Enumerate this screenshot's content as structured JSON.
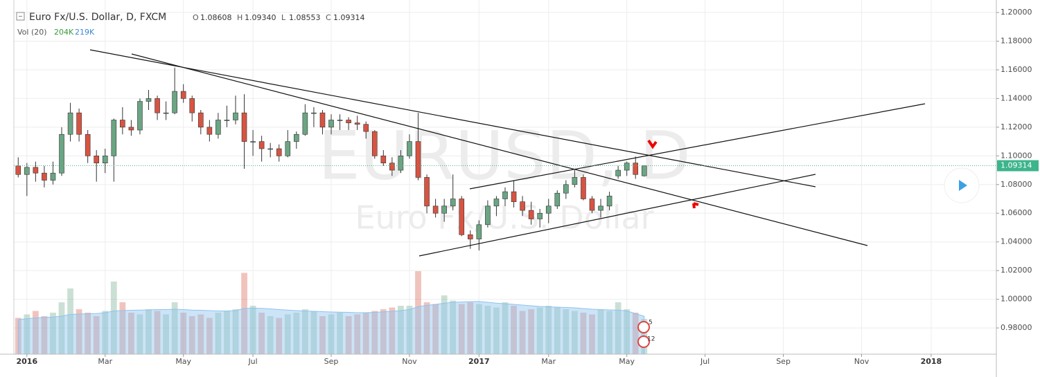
{
  "header": {
    "symbol": "Euro Fx/U.S. Dollar, D, FXCM",
    "ohlc": [
      {
        "key": "O",
        "value": "1.08608"
      },
      {
        "key": "H",
        "value": "1.09340"
      },
      {
        "key": "L",
        "value": "1.08553"
      },
      {
        "key": "C",
        "value": "1.09314"
      }
    ],
    "volume_indicator": "Vol (20)",
    "volume_values": [
      "204K",
      "219K"
    ]
  },
  "watermark": {
    "ticker": "EURUSD, D",
    "description": "Euro Fx/U.S. Dollar"
  },
  "events": [
    "5",
    "12"
  ],
  "chart_data": {
    "type": "candlestick",
    "grid": true,
    "up_color": "#6ba583",
    "down_color": "#d75442",
    "volume_ma_color": "#8fc3ee",
    "last_price_color": "#3cb48c",
    "ylim": [
      0.9617,
      1.2087
    ],
    "yticks": [
      {
        "value": 0.98,
        "label": "0.98000"
      },
      {
        "value": 1.0,
        "label": "1.00000"
      },
      {
        "value": 1.02,
        "label": "1.02000"
      },
      {
        "value": 1.04,
        "label": "1.04000"
      },
      {
        "value": 1.06,
        "label": "1.06000"
      },
      {
        "value": 1.08,
        "label": "1.08000"
      },
      {
        "value": 1.1,
        "label": "1.10000"
      },
      {
        "value": 1.12,
        "label": "1.12000"
      },
      {
        "value": 1.14,
        "label": "1.14000"
      },
      {
        "value": 1.16,
        "label": "1.16000"
      },
      {
        "value": 1.18,
        "label": "1.18000"
      },
      {
        "value": 1.2,
        "label": "1.20000"
      }
    ],
    "last_price": 1.09314,
    "categories": [
      null,
      "2016",
      null,
      null,
      null,
      null,
      null,
      null,
      null,
      null,
      "Mar",
      null,
      null,
      null,
      null,
      null,
      null,
      null,
      null,
      "May",
      null,
      null,
      null,
      null,
      null,
      null,
      null,
      "Jul",
      null,
      null,
      null,
      null,
      null,
      null,
      null,
      null,
      "Sep",
      null,
      null,
      null,
      null,
      null,
      null,
      null,
      null,
      "Nov",
      null,
      null,
      null,
      null,
      null,
      null,
      null,
      "2017",
      null,
      null,
      null,
      null,
      null,
      null,
      null,
      "Mar",
      null,
      null,
      null,
      null,
      null,
      null,
      null,
      null,
      "May",
      null,
      null,
      null,
      null,
      null,
      null,
      null,
      null,
      "Jul",
      null,
      null,
      null,
      null,
      null,
      null,
      null,
      null,
      "Sep",
      null,
      null,
      null,
      null,
      null,
      null,
      null,
      null,
      "Nov",
      null,
      null,
      null,
      null,
      null,
      null,
      null,
      "2018",
      null,
      null,
      null,
      null,
      null,
      null,
      null
    ],
    "open": [
      1.093,
      1.087,
      1.092,
      1.088,
      1.083,
      1.088,
      1.115,
      1.13,
      1.115,
      1.1,
      1.095,
      1.1,
      1.125,
      1.12,
      1.118,
      1.138,
      1.14,
      1.13,
      1.13,
      1.145,
      1.14,
      1.13,
      1.12,
      1.115,
      1.125,
      1.125,
      1.13,
      1.11,
      1.11,
      1.105,
      1.105,
      1.1,
      1.11,
      1.115,
      1.13,
      1.13,
      1.12,
      1.125,
      1.125,
      1.123,
      1.122,
      1.117,
      1.1,
      1.095,
      1.09,
      1.1,
      1.11,
      1.085,
      1.065,
      1.06,
      1.065,
      1.07,
      1.045,
      1.042,
      1.052,
      1.065,
      1.07,
      1.075,
      1.068,
      1.062,
      1.056,
      1.06,
      1.065,
      1.074,
      1.08,
      1.085,
      1.07,
      1.062,
      1.065,
      1.086,
      1.09,
      1.095,
      1.08608,
      null,
      null,
      null,
      null,
      null,
      null,
      null,
      null,
      null,
      null,
      null,
      null,
      null,
      null,
      null,
      null,
      null,
      null,
      null,
      null,
      null,
      null,
      null,
      null,
      null,
      null,
      null,
      null,
      null,
      null,
      null,
      null,
      null,
      null,
      null,
      null,
      null,
      null,
      null,
      null
    ],
    "high": [
      1.099,
      1.095,
      1.096,
      1.093,
      1.096,
      1.12,
      1.137,
      1.133,
      1.118,
      1.104,
      1.105,
      1.126,
      1.134,
      1.125,
      1.14,
      1.146,
      1.142,
      1.138,
      1.1616,
      1.15,
      1.142,
      1.132,
      1.125,
      1.13,
      1.135,
      1.142,
      1.143,
      1.118,
      1.114,
      1.109,
      1.108,
      1.118,
      1.117,
      1.136,
      1.134,
      1.132,
      1.129,
      1.129,
      1.127,
      1.128,
      1.124,
      1.118,
      1.104,
      1.099,
      1.104,
      1.115,
      1.13,
      1.087,
      1.07,
      1.07,
      1.087,
      1.072,
      1.048,
      1.055,
      1.069,
      1.072,
      1.078,
      1.083,
      1.072,
      1.068,
      1.063,
      1.07,
      1.076,
      1.083,
      1.09,
      1.087,
      1.072,
      1.07,
      1.075,
      1.093,
      1.096,
      1.0995,
      1.0934,
      null,
      null,
      null,
      null,
      null,
      null,
      null,
      null,
      null,
      null,
      null,
      null,
      null,
      null,
      null,
      null,
      null,
      null,
      null,
      null,
      null,
      null,
      null,
      null,
      null,
      null,
      null,
      null,
      null,
      null,
      null,
      null,
      null,
      null,
      null,
      null,
      null,
      null,
      null,
      null
    ],
    "low": [
      1.085,
      1.072,
      1.082,
      1.078,
      1.08,
      1.086,
      1.11,
      1.11,
      1.095,
      1.082,
      1.088,
      1.082,
      1.115,
      1.114,
      1.115,
      1.132,
      1.125,
      1.125,
      1.129,
      1.137,
      1.124,
      1.115,
      1.11,
      1.112,
      1.12,
      1.122,
      1.091,
      1.1,
      1.096,
      1.099,
      1.096,
      1.099,
      1.105,
      1.114,
      1.12,
      1.115,
      1.115,
      1.118,
      1.118,
      1.118,
      1.112,
      1.098,
      1.093,
      1.086,
      1.088,
      1.098,
      1.083,
      1.06,
      1.057,
      1.054,
      1.062,
      1.044,
      1.0352,
      1.034,
      1.05,
      1.058,
      1.065,
      1.064,
      1.058,
      1.052,
      1.05,
      1.053,
      1.063,
      1.07,
      1.078,
      1.069,
      1.06,
      1.057,
      1.062,
      1.084,
      1.086,
      1.084,
      1.08553,
      null,
      null,
      null,
      null,
      null,
      null,
      null,
      null,
      null,
      null,
      null,
      null,
      null,
      null,
      null,
      null,
      null,
      null,
      null,
      null,
      null,
      null,
      null,
      null,
      null,
      null,
      null,
      null,
      null,
      null,
      null,
      null,
      null,
      null,
      null,
      null,
      null,
      null,
      null,
      null
    ],
    "close": [
      1.087,
      1.092,
      1.088,
      1.083,
      1.088,
      1.115,
      1.13,
      1.115,
      1.1,
      1.095,
      1.1,
      1.125,
      1.12,
      1.118,
      1.138,
      1.14,
      1.13,
      1.13,
      1.145,
      1.14,
      1.13,
      1.12,
      1.115,
      1.125,
      1.125,
      1.13,
      1.11,
      1.11,
      1.105,
      1.105,
      1.1,
      1.11,
      1.115,
      1.13,
      1.13,
      1.12,
      1.125,
      1.125,
      1.123,
      1.122,
      1.117,
      1.1,
      1.095,
      1.09,
      1.1,
      1.11,
      1.085,
      1.065,
      1.06,
      1.065,
      1.07,
      1.045,
      1.042,
      1.052,
      1.065,
      1.07,
      1.075,
      1.068,
      1.062,
      1.056,
      1.06,
      1.065,
      1.074,
      1.08,
      1.085,
      1.07,
      1.062,
      1.065,
      1.072,
      1.09,
      1.095,
      1.087,
      1.09314,
      null,
      null,
      null,
      null,
      null,
      null,
      null,
      null,
      null,
      null,
      null,
      null,
      null,
      null,
      null,
      null,
      null,
      null,
      null,
      null,
      null,
      null,
      null,
      null,
      null,
      null,
      null,
      null,
      null,
      null,
      null,
      null,
      null,
      null,
      null,
      null,
      null,
      null,
      null,
      null
    ],
    "volume": [
      210,
      230,
      250,
      220,
      240,
      300,
      380,
      260,
      240,
      220,
      250,
      420,
      300,
      240,
      230,
      260,
      250,
      230,
      300,
      240,
      220,
      230,
      210,
      240,
      250,
      260,
      470,
      280,
      240,
      220,
      210,
      230,
      240,
      260,
      250,
      220,
      230,
      240,
      220,
      230,
      240,
      250,
      260,
      270,
      280,
      280,
      480,
      300,
      290,
      340,
      310,
      290,
      300,
      290,
      280,
      270,
      300,
      280,
      250,
      260,
      270,
      280,
      270,
      260,
      250,
      240,
      230,
      260,
      250,
      300,
      260,
      240,
      204,
      null,
      null,
      null,
      null,
      null,
      null,
      null,
      null,
      null,
      null,
      null,
      null,
      null,
      null,
      null,
      null,
      null,
      null,
      null,
      null,
      null,
      null,
      null,
      null,
      null,
      null,
      null,
      null,
      null,
      null,
      null,
      null,
      null,
      null,
      null,
      null,
      null,
      null,
      null,
      null
    ],
    "volume_ma": [
      200,
      205,
      210,
      212,
      215,
      220,
      230,
      232,
      234,
      235,
      240,
      250,
      252,
      254,
      255,
      256,
      258,
      258,
      260,
      258,
      255,
      254,
      252,
      250,
      250,
      252,
      265,
      266,
      265,
      262,
      258,
      255,
      252,
      250,
      248,
      246,
      244,
      243,
      242,
      240,
      240,
      242,
      245,
      248,
      252,
      258,
      275,
      282,
      288,
      295,
      300,
      302,
      304,
      305,
      300,
      295,
      292,
      288,
      284,
      280,
      276,
      274,
      272,
      270,
      268,
      264,
      260,
      258,
      256,
      255,
      250,
      235,
      219,
      null,
      null,
      null,
      null,
      null,
      null,
      null,
      null,
      null,
      null,
      null,
      null,
      null,
      null,
      null,
      null,
      null,
      null,
      null,
      null,
      null,
      null,
      null,
      null,
      null,
      null,
      null,
      null,
      null,
      null,
      null,
      null,
      null,
      null,
      null,
      null,
      null,
      null,
      null,
      null
    ]
  }
}
